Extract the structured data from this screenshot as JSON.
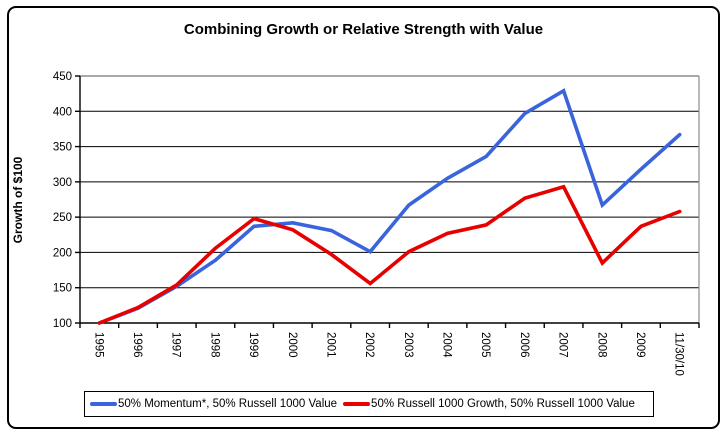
{
  "chart_data": {
    "type": "line",
    "title": "Combining Growth or Relative Strength with Value",
    "xlabel": "",
    "ylabel": "Growth of $100",
    "ylim": [
      100,
      450
    ],
    "y_ticks": [
      100,
      150,
      200,
      250,
      300,
      350,
      400,
      450
    ],
    "grid": true,
    "legend_position": "bottom",
    "categories": [
      "1995",
      "1996",
      "1997",
      "1998",
      "1999",
      "2000",
      "2001",
      "2002",
      "2003",
      "2004",
      "2005",
      "2006",
      "2007",
      "2008",
      "2009",
      "11/30/10"
    ],
    "series": [
      {
        "name": "50% Momentum*, 50% Russell 1000 Value",
        "color": "#3A64DC",
        "values": [
          100,
          121,
          152,
          189,
          237,
          242,
          231,
          201,
          267,
          305,
          336,
          397,
          429,
          267,
          318,
          367
        ]
      },
      {
        "name": "50% Russell 1000 Growth, 50% Russell 1000 Value",
        "color": "#E60000",
        "values": [
          100,
          122,
          154,
          206,
          248,
          232,
          197,
          156,
          201,
          227,
          239,
          277,
          293,
          185,
          237,
          258
        ]
      }
    ],
    "colors": {
      "axis": "#000000",
      "gridline": "#000000",
      "plot_border": "#8C8C8C",
      "text": "#000000"
    }
  }
}
